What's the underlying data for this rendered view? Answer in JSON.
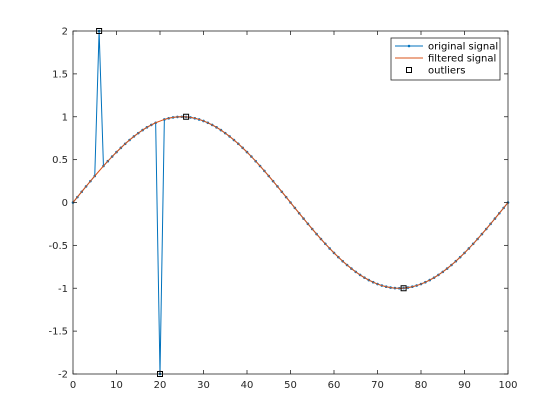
{
  "chart_data": {
    "type": "line",
    "title": "",
    "xlabel": "",
    "ylabel": "",
    "xlim": [
      0,
      100
    ],
    "ylim": [
      -2,
      2
    ],
    "xticks": [
      0,
      10,
      20,
      30,
      40,
      50,
      60,
      70,
      80,
      90,
      100
    ],
    "xtick_labels": [
      "0",
      "10",
      "20",
      "30",
      "40",
      "50",
      "60",
      "70",
      "80",
      "90",
      "100"
    ],
    "yticks": [
      -2,
      -1.5,
      -1,
      -0.5,
      0,
      0.5,
      1,
      1.5,
      2
    ],
    "ytick_labels": [
      "-2",
      "-1.5",
      "-1",
      "-0.5",
      "0",
      "0.5",
      "1",
      "1.5",
      "2"
    ],
    "grid": false,
    "legend_position": "top-right",
    "series": [
      {
        "name": "original signal",
        "kind": "line-with-dot-markers",
        "color": "#0072BD",
        "function": "sin(2*pi*x/100)",
        "x_range": [
          0,
          100
        ],
        "x_step": 1,
        "overrides": [
          [
            6,
            2
          ],
          [
            20,
            -2
          ]
        ]
      },
      {
        "name": "filtered signal",
        "kind": "line",
        "color": "#D95319",
        "function": "sin(2*pi*x/100)",
        "x_range": [
          0,
          100
        ],
        "x_step": 1,
        "interpolated_over": [
          6,
          20
        ]
      },
      {
        "name": "outliers",
        "kind": "square-markers",
        "color": "#000000",
        "points": [
          [
            6,
            2
          ],
          [
            20,
            -2
          ],
          [
            26,
            1
          ],
          [
            76,
            -1
          ]
        ]
      }
    ]
  }
}
